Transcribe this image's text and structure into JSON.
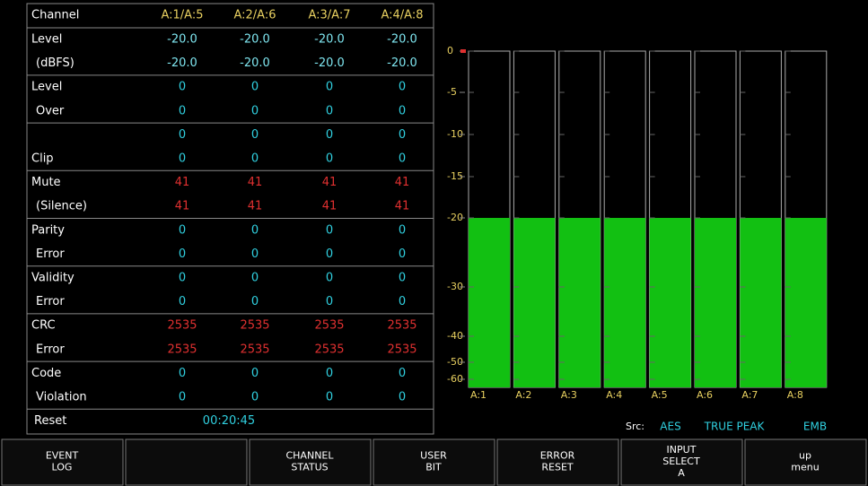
{
  "table": {
    "header": [
      "Channel",
      "A:1/A:5",
      "A:2/A:6",
      "A:3/A:7",
      "A:4/A:8"
    ],
    "rows": [
      {
        "label": "Level",
        "values": [
          "-20.0",
          "-20.0",
          "-20.0",
          "-20.0"
        ],
        "color": "#7fe6f0"
      },
      {
        "label": "(dBFS)",
        "values": [
          "-20.0",
          "-20.0",
          "-20.0",
          "-20.0"
        ],
        "color": "#7fe6f0"
      },
      {
        "label": "Level",
        "values": [
          "0",
          "0",
          "0",
          "0"
        ],
        "color": "#30d0e0"
      },
      {
        "label": "Over",
        "values": [
          "0",
          "0",
          "0",
          "0"
        ],
        "color": "#30d0e0"
      },
      {
        "label": null,
        "values": [
          "0",
          "0",
          "0",
          "0"
        ],
        "color": "#30d0e0"
      },
      {
        "label": "Clip",
        "values": [
          "0",
          "0",
          "0",
          "0"
        ],
        "color": "#30d0e0"
      },
      {
        "label": "Mute",
        "values": [
          "41",
          "41",
          "41",
          "41"
        ],
        "color": "#e03030"
      },
      {
        "label": "(Silence)",
        "values": [
          "41",
          "41",
          "41",
          "41"
        ],
        "color": "#e03030"
      },
      {
        "label": "Parity",
        "values": [
          "0",
          "0",
          "0",
          "0"
        ],
        "color": "#30d0e0"
      },
      {
        "label": "Error",
        "values": [
          "0",
          "0",
          "0",
          "0"
        ],
        "color": "#30d0e0"
      },
      {
        "label": "Validity",
        "values": [
          "0",
          "0",
          "0",
          "0"
        ],
        "color": "#30d0e0"
      },
      {
        "label": "Error",
        "values": [
          "0",
          "0",
          "0",
          "0"
        ],
        "color": "#30d0e0"
      },
      {
        "label": "CRC",
        "values": [
          "2535",
          "2535",
          "2535",
          "2535"
        ],
        "color": "#e03030"
      },
      {
        "label": "Error",
        "values": [
          "2535",
          "2535",
          "2535",
          "2535"
        ],
        "color": "#e03030"
      },
      {
        "label": "Code",
        "values": [
          "0",
          "0",
          "0",
          "0"
        ],
        "color": "#30d0e0"
      },
      {
        "label": "Violation",
        "values": [
          "0",
          "0",
          "0",
          "0"
        ],
        "color": "#30d0e0"
      }
    ],
    "reset": {
      "label": "Reset",
      "time": "00:20:45"
    }
  },
  "meter": {
    "scale": [
      0,
      -5,
      -10,
      -15,
      -20,
      -30,
      -40,
      -50,
      -60
    ],
    "color": "#12c012",
    "channels": [
      {
        "name": "A:1",
        "level": -20
      },
      {
        "name": "A:2",
        "level": -20
      },
      {
        "name": "A:3",
        "level": -20
      },
      {
        "name": "A:4",
        "level": -20
      },
      {
        "name": "A:5",
        "level": -20
      },
      {
        "name": "A:6",
        "level": -20
      },
      {
        "name": "A:7",
        "level": -20
      },
      {
        "name": "A:8",
        "level": -20
      }
    ]
  },
  "source": {
    "label": "Src:",
    "items": [
      "AES",
      "TRUE PEAK",
      "EMB"
    ]
  },
  "keys": [
    {
      "lines": [
        "EVENT",
        "LOG"
      ]
    },
    null,
    {
      "lines": [
        "CHANNEL",
        "STATUS"
      ]
    },
    {
      "lines": [
        "USER",
        "BIT"
      ]
    },
    {
      "lines": [
        "ERROR",
        "RESET"
      ]
    },
    {
      "lines": [
        "INPUT",
        "SELECT",
        "A"
      ]
    },
    {
      "lines": [
        "up",
        "menu"
      ]
    }
  ]
}
